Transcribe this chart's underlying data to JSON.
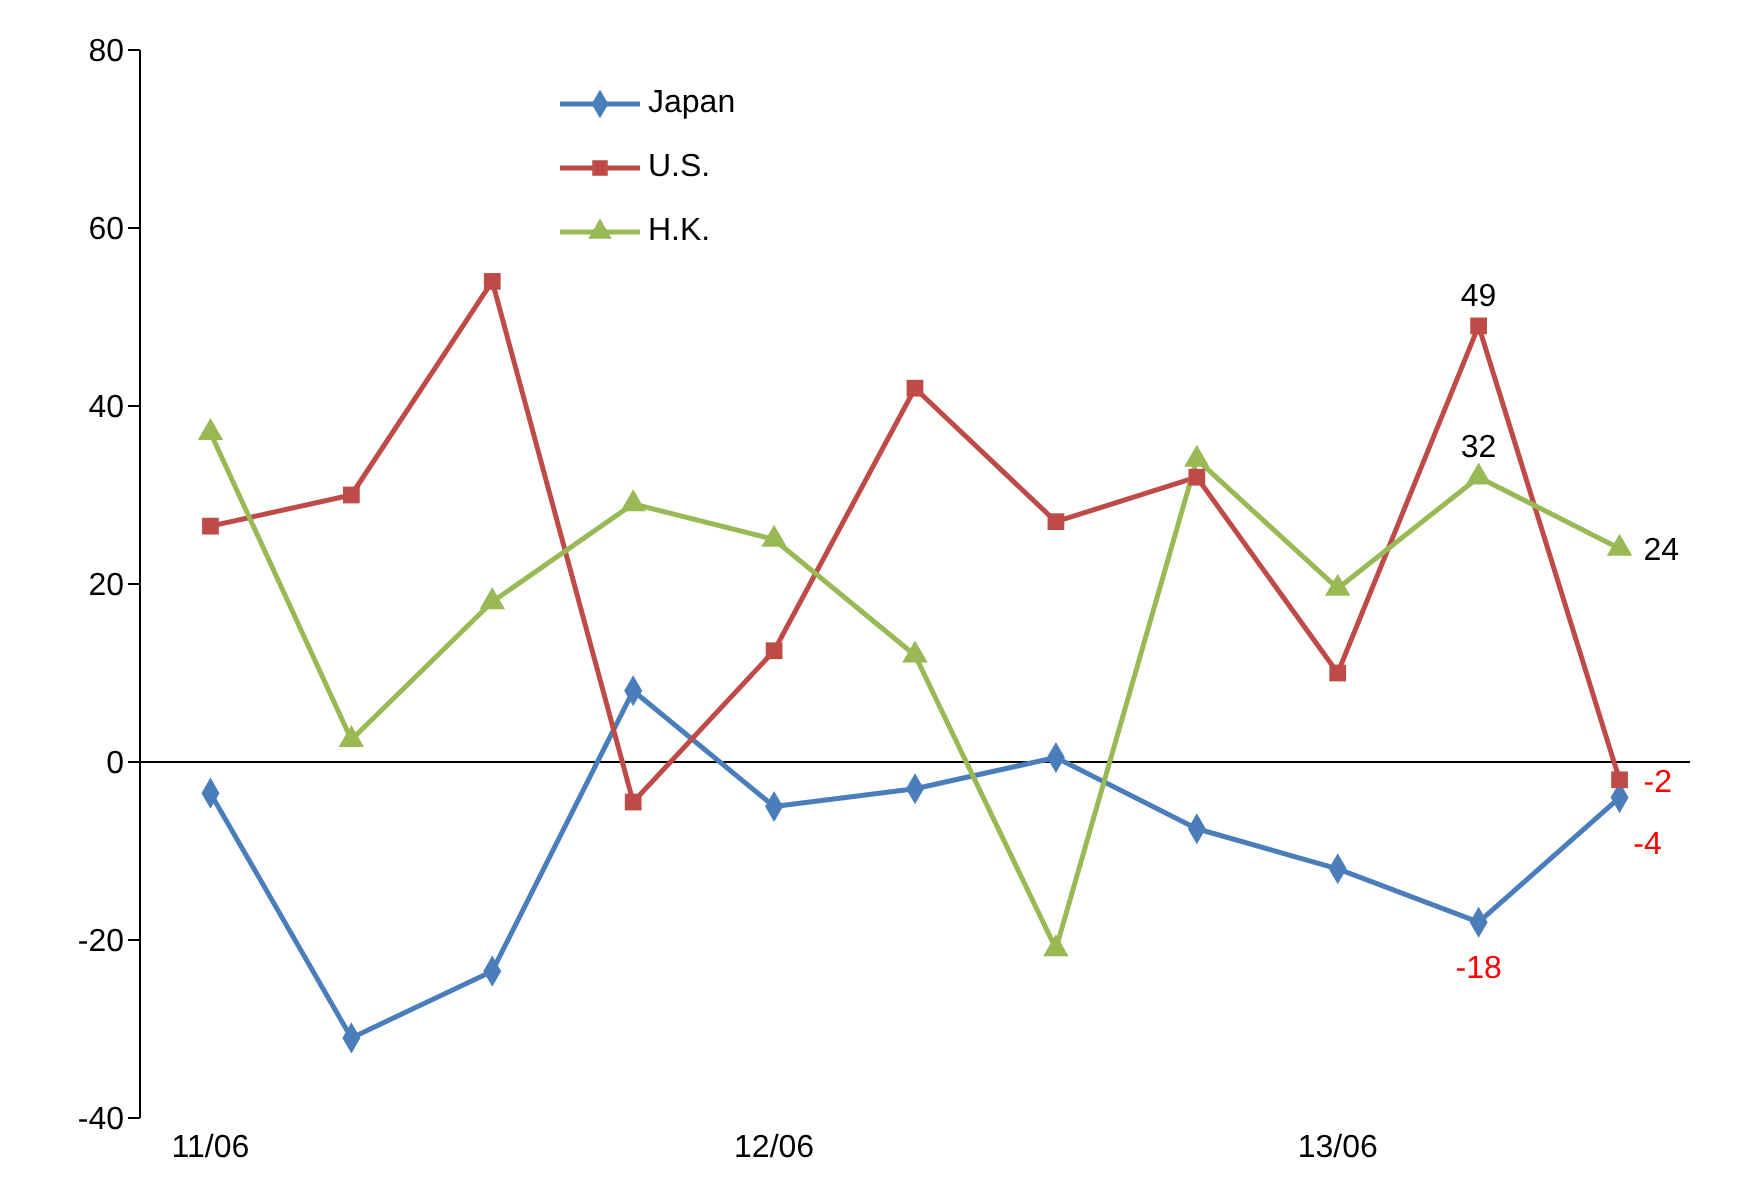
{
  "chart_data": {
    "type": "line",
    "categories": [
      "11/06",
      null,
      null,
      null,
      "12/06",
      null,
      null,
      null,
      "13/06",
      null,
      null
    ],
    "series": [
      {
        "name": "Japan",
        "color": "#4a7ebb",
        "marker": "diamond",
        "values": [
          -3.5,
          -31,
          -23.5,
          8,
          -5,
          -3,
          0.5,
          -7.5,
          -12,
          -18,
          -4
        ],
        "value_labels": [
          null,
          null,
          null,
          null,
          null,
          null,
          null,
          null,
          null,
          "-18",
          "-4"
        ]
      },
      {
        "name": "U.S.",
        "color": "#be4b48",
        "marker": "square",
        "values": [
          26.5,
          30,
          54,
          -4.5,
          12.5,
          42,
          27,
          32,
          10,
          49,
          -2
        ],
        "value_labels": [
          null,
          null,
          null,
          null,
          null,
          null,
          null,
          null,
          null,
          "49",
          "-2"
        ]
      },
      {
        "name": "H.K.",
        "color": "#98b954",
        "marker": "triangle",
        "values": [
          37,
          2.5,
          18,
          29,
          25,
          12,
          -21,
          34,
          19.5,
          32,
          24
        ],
        "value_labels": [
          null,
          null,
          null,
          null,
          null,
          null,
          null,
          null,
          null,
          "32",
          "24"
        ]
      }
    ],
    "ylim": [
      -40,
      80
    ],
    "yticks": [
      -40,
      -20,
      0,
      20,
      40,
      60,
      80
    ],
    "grid": false,
    "legend": "top",
    "ref_lines": [
      {
        "axis": "y",
        "value": 0,
        "color": "#000000"
      }
    ]
  }
}
